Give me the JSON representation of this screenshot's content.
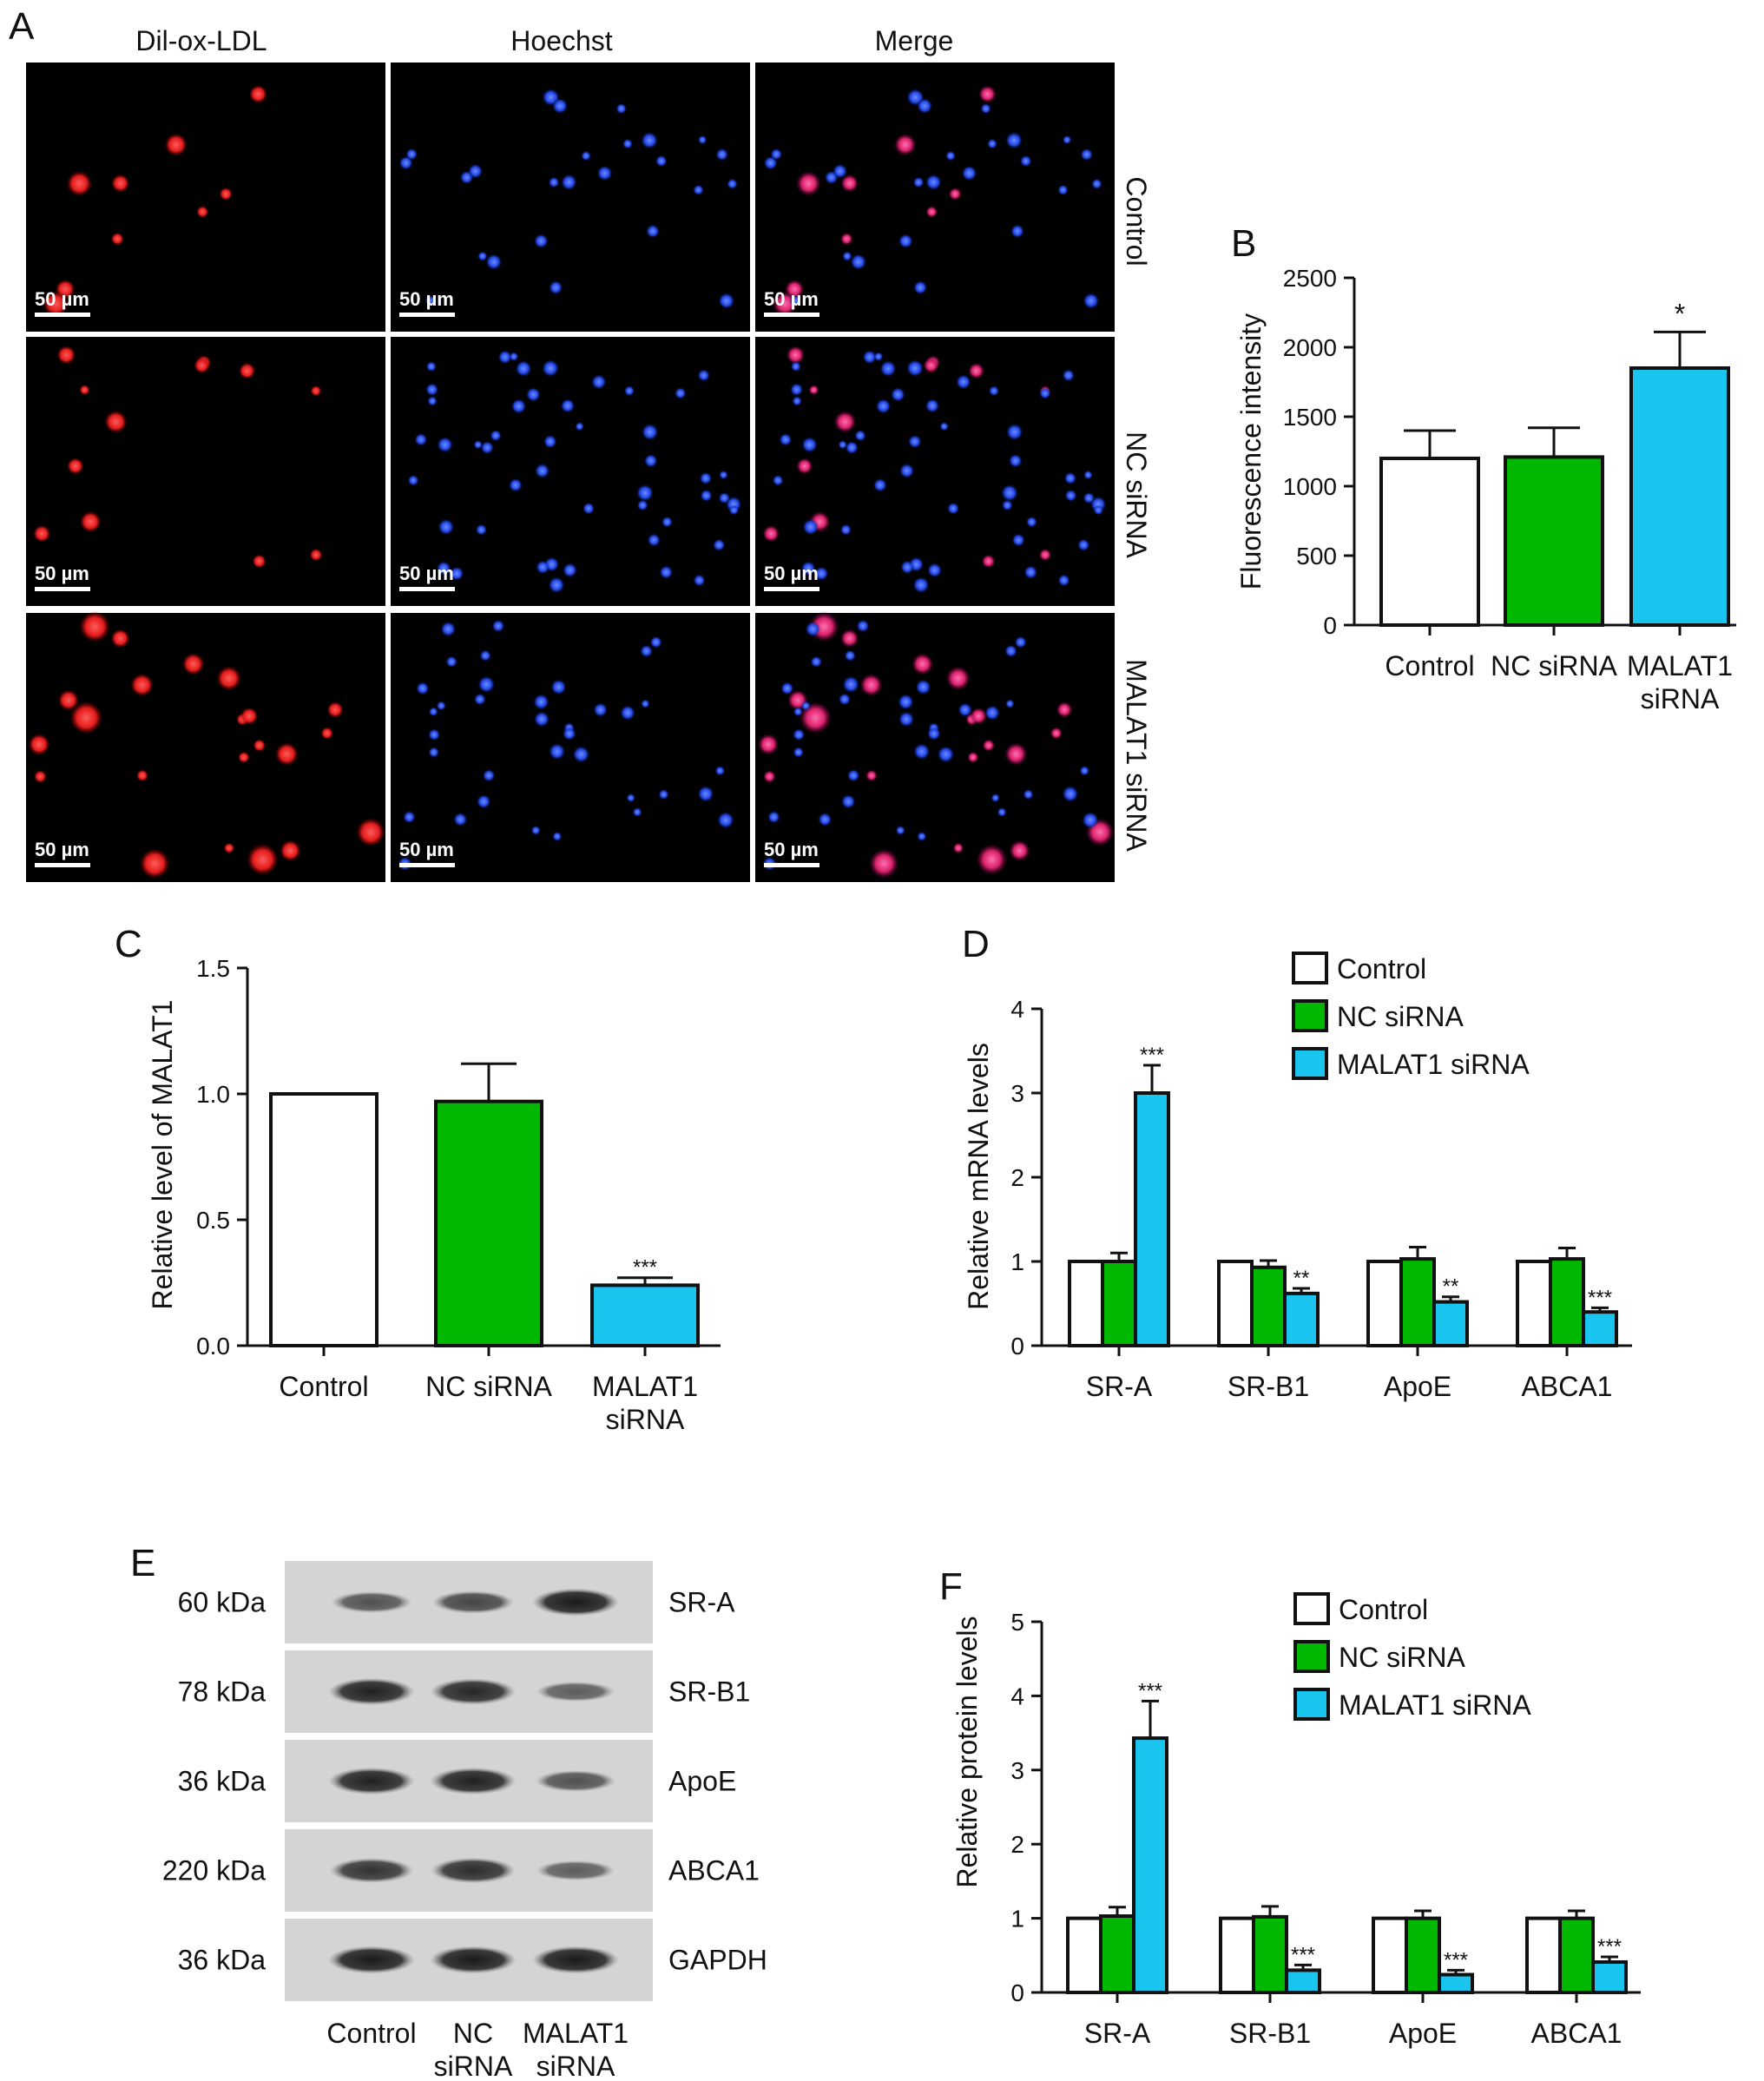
{
  "colors": {
    "control": "#ffffff",
    "nc_sirna": "#00b800",
    "malat1_sirna": "#19c5ef",
    "outline": "#111111",
    "dil_stain": "#e21b1b",
    "hoechst_stain": "#2147e6"
  },
  "panel_a": {
    "label": "A",
    "columns": [
      "Dil-ox-LDL",
      "Hoechst",
      "Merge"
    ],
    "rows": [
      "Control",
      "NC siRNA",
      "MALAT1 siRNA"
    ],
    "scale_bar": "50 µm"
  },
  "panel_e": {
    "label": "E",
    "weights": [
      "60 kDa",
      "78 kDa",
      "36 kDa",
      "220 kDa",
      "36 kDa"
    ],
    "proteins": [
      "SR-A",
      "SR-B1",
      "ApoE",
      "ABCA1",
      "GAPDH"
    ],
    "lanes": [
      "Control",
      "NC\nsiRNA",
      "MALAT1\nsiRNA"
    ],
    "band_intensity": [
      [
        0.55,
        0.65,
        1.0
      ],
      [
        0.95,
        0.9,
        0.45
      ],
      [
        0.95,
        0.95,
        0.55
      ],
      [
        0.8,
        0.85,
        0.45
      ],
      [
        1.0,
        1.0,
        1.0
      ]
    ]
  },
  "chart_data": [
    {
      "panel": "B",
      "type": "bar",
      "categories": [
        "Control",
        "NC siRNA",
        "MALAT1\nsiRNA"
      ],
      "values": [
        1200,
        1210,
        1850
      ],
      "errors": [
        200,
        210,
        260
      ],
      "annotations": [
        "",
        "",
        "*"
      ],
      "ylabel": "Fluorescence intensity",
      "xlabel": "",
      "ylim": [
        0,
        2500
      ],
      "yticks": [
        0,
        500,
        1000,
        1500,
        2000,
        2500
      ]
    },
    {
      "panel": "C",
      "type": "bar",
      "categories": [
        "Control",
        "NC siRNA",
        "MALAT1\nsiRNA"
      ],
      "values": [
        1.0,
        0.97,
        0.24
      ],
      "errors": [
        0,
        0.15,
        0.03
      ],
      "annotations": [
        "",
        "",
        "***"
      ],
      "ylabel": "Relative level of MALAT1",
      "xlabel": "",
      "ylim": [
        0,
        1.5
      ],
      "yticks": [
        "0.0",
        "0.5",
        "1.0",
        "1.5"
      ]
    },
    {
      "panel": "D",
      "type": "bar",
      "categories": [
        "SR-A",
        "SR-B1",
        "ApoE",
        "ABCA1"
      ],
      "series": [
        {
          "name": "Control",
          "values": [
            1.0,
            1.0,
            1.0,
            1.0
          ],
          "errors": [
            0,
            0,
            0,
            0
          ]
        },
        {
          "name": "NC siRNA",
          "values": [
            1.0,
            0.93,
            1.03,
            1.03
          ],
          "errors": [
            0.1,
            0.08,
            0.14,
            0.13
          ]
        },
        {
          "name": "MALAT1 siRNA",
          "values": [
            3.0,
            0.62,
            0.52,
            0.4
          ],
          "errors": [
            0.33,
            0.06,
            0.06,
            0.05
          ]
        }
      ],
      "annotations": [
        "***",
        "**",
        "**",
        "***"
      ],
      "ylabel": "Relative mRNA levels",
      "xlabel": "",
      "ylim": [
        0,
        4
      ],
      "yticks": [
        0,
        1,
        2,
        3,
        4
      ],
      "legend": "top-right"
    },
    {
      "panel": "F",
      "type": "bar",
      "categories": [
        "SR-A",
        "SR-B1",
        "ApoE",
        "ABCA1"
      ],
      "series": [
        {
          "name": "Control",
          "values": [
            1.0,
            1.0,
            1.0,
            1.0
          ],
          "errors": [
            0,
            0,
            0,
            0
          ]
        },
        {
          "name": "NC siRNA",
          "values": [
            1.03,
            1.02,
            1.0,
            1.0
          ],
          "errors": [
            0.12,
            0.14,
            0.1,
            0.1
          ]
        },
        {
          "name": "MALAT1 siRNA",
          "values": [
            3.43,
            0.3,
            0.24,
            0.41
          ],
          "errors": [
            0.5,
            0.07,
            0.06,
            0.07
          ]
        }
      ],
      "annotations": [
        "***",
        "***",
        "***",
        "***"
      ],
      "ylabel": "Relative protein levels",
      "xlabel": "",
      "ylim": [
        0,
        5
      ],
      "yticks": [
        0,
        1,
        2,
        3,
        4,
        5
      ],
      "legend": "top-right"
    }
  ]
}
